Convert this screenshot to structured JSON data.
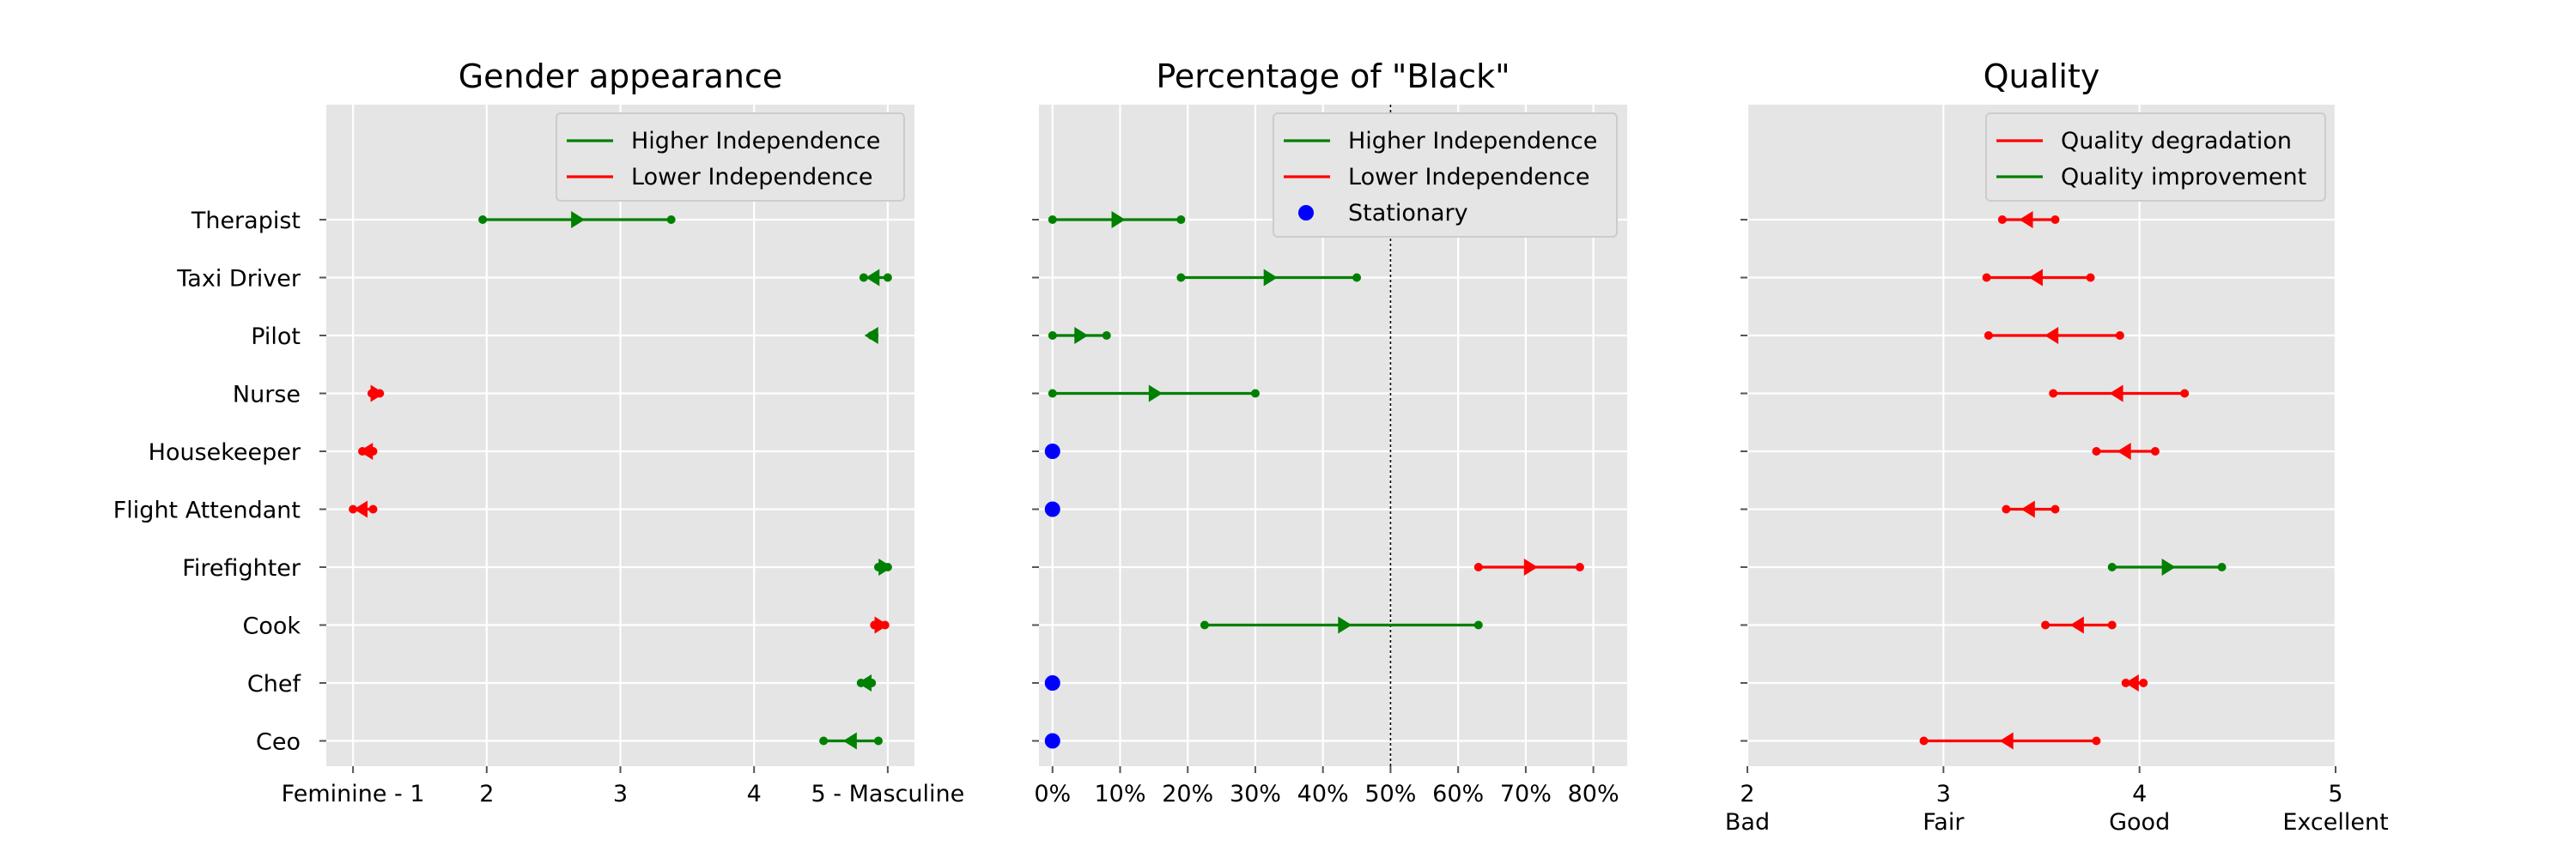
{
  "chart_data": [
    {
      "type": "dumbbell",
      "title": "Gender appearance",
      "xlim": [
        0.8,
        5.2
      ],
      "xticks": [
        1,
        2,
        3,
        4,
        5
      ],
      "xticklabels": [
        "Feminine - 1",
        "2",
        "3",
        "4",
        "5 - Masculine"
      ],
      "categories": [
        "Therapist",
        "Taxi Driver",
        "Pilot",
        "Nurse",
        "Housekeeper",
        "Flight Attendant",
        "Firefighter",
        "Cook",
        "Chef",
        "Ceo"
      ],
      "ref_line": null,
      "legend": [
        {
          "label": "Higher Independence",
          "color": "#008000",
          "kind": "line"
        },
        {
          "label": "Lower Independence",
          "color": "#ff0000",
          "kind": "line"
        }
      ],
      "rows": [
        {
          "category": "Therapist",
          "low": 1.97,
          "high": 3.38,
          "mid": 2.67,
          "dir": "right",
          "color": "#008000"
        },
        {
          "category": "Taxi Driver",
          "low": 4.82,
          "high": 5.0,
          "mid": 4.9,
          "dir": "left",
          "color": "#008000"
        },
        {
          "category": "Pilot",
          "low": 4.88,
          "high": 4.9,
          "mid": 4.89,
          "dir": "left",
          "color": "#008000"
        },
        {
          "category": "Nurse",
          "low": 1.14,
          "high": 1.2,
          "mid": 1.17,
          "dir": "right",
          "color": "#ff0000"
        },
        {
          "category": "Housekeeper",
          "low": 1.07,
          "high": 1.15,
          "mid": 1.11,
          "dir": "left",
          "color": "#ff0000"
        },
        {
          "category": "Flight Attendant",
          "low": 1.0,
          "high": 1.15,
          "mid": 1.07,
          "dir": "left",
          "color": "#ff0000"
        },
        {
          "category": "Firefighter",
          "low": 4.93,
          "high": 5.0,
          "mid": 4.97,
          "dir": "right",
          "color": "#008000"
        },
        {
          "category": "Cook",
          "low": 4.9,
          "high": 4.98,
          "mid": 4.94,
          "dir": "right",
          "color": "#ff0000"
        },
        {
          "category": "Chef",
          "low": 4.8,
          "high": 4.88,
          "mid": 4.84,
          "dir": "left",
          "color": "#008000"
        },
        {
          "category": "Ceo",
          "low": 4.52,
          "high": 4.93,
          "mid": 4.73,
          "dir": "left",
          "color": "#008000"
        }
      ]
    },
    {
      "type": "dumbbell",
      "title": "Percentage of \"Black\"",
      "xlim": [
        -2,
        85
      ],
      "xticks": [
        0,
        10,
        20,
        30,
        40,
        50,
        60,
        70,
        80
      ],
      "xticklabels": [
        "0%",
        "10%",
        "20%",
        "30%",
        "40%",
        "50%",
        "60%",
        "70%",
        "80%"
      ],
      "categories": [
        "Therapist",
        "Taxi Driver",
        "Pilot",
        "Nurse",
        "Housekeeper",
        "Flight Attendant",
        "Firefighter",
        "Cook",
        "Chef",
        "Ceo"
      ],
      "ref_line": 50,
      "legend": [
        {
          "label": "Higher Independence",
          "color": "#008000",
          "kind": "line"
        },
        {
          "label": "Lower Independence",
          "color": "#ff0000",
          "kind": "line"
        },
        {
          "label": "Stationary",
          "color": "#0000ff",
          "kind": "dot"
        }
      ],
      "rows": [
        {
          "category": "Therapist",
          "low": 0,
          "high": 19,
          "mid": 9.5,
          "dir": "right",
          "color": "#008000"
        },
        {
          "category": "Taxi Driver",
          "low": 19,
          "high": 45,
          "mid": 32,
          "dir": "right",
          "color": "#008000"
        },
        {
          "category": "Pilot",
          "low": 0,
          "high": 8,
          "mid": 4,
          "dir": "right",
          "color": "#008000"
        },
        {
          "category": "Nurse",
          "low": 0,
          "high": 30,
          "mid": 15,
          "dir": "right",
          "color": "#008000"
        },
        {
          "category": "Housekeeper",
          "low": 0,
          "high": 0,
          "mid": 0,
          "dir": "stationary",
          "color": "#0000ff"
        },
        {
          "category": "Flight Attendant",
          "low": 0,
          "high": 0,
          "mid": 0,
          "dir": "stationary",
          "color": "#0000ff"
        },
        {
          "category": "Firefighter",
          "low": 63,
          "high": 78,
          "mid": 70.5,
          "dir": "right",
          "color": "#ff0000"
        },
        {
          "category": "Cook",
          "low": 22.5,
          "high": 63,
          "mid": 43,
          "dir": "right",
          "color": "#008000"
        },
        {
          "category": "Chef",
          "low": 0,
          "high": 0,
          "mid": 0,
          "dir": "stationary",
          "color": "#0000ff"
        },
        {
          "category": "Ceo",
          "low": 0,
          "high": 0,
          "mid": 0,
          "dir": "stationary",
          "color": "#0000ff"
        }
      ]
    },
    {
      "type": "dumbbell",
      "title": "Quality",
      "xlim": [
        2,
        5
      ],
      "xticks": [
        2,
        3,
        4,
        5
      ],
      "xticklabels": [
        "2\nBad",
        "3\nFair",
        "4\nGood",
        "5\nExcellent"
      ],
      "categories": [
        "Therapist",
        "Taxi Driver",
        "Pilot",
        "Nurse",
        "Housekeeper",
        "Flight Attendant",
        "Firefighter",
        "Cook",
        "Chef",
        "Ceo"
      ],
      "ref_line": null,
      "legend": [
        {
          "label": "Quality degradation",
          "color": "#ff0000",
          "kind": "line"
        },
        {
          "label": "Quality improvement",
          "color": "#008000",
          "kind": "line"
        }
      ],
      "rows": [
        {
          "category": "Therapist",
          "low": 3.3,
          "high": 3.57,
          "mid": 3.43,
          "dir": "left",
          "color": "#ff0000"
        },
        {
          "category": "Taxi Driver",
          "low": 3.22,
          "high": 3.75,
          "mid": 3.48,
          "dir": "left",
          "color": "#ff0000"
        },
        {
          "category": "Pilot",
          "low": 3.23,
          "high": 3.9,
          "mid": 3.56,
          "dir": "left",
          "color": "#ff0000"
        },
        {
          "category": "Nurse",
          "low": 3.56,
          "high": 4.23,
          "mid": 3.89,
          "dir": "left",
          "color": "#ff0000"
        },
        {
          "category": "Housekeeper",
          "low": 3.78,
          "high": 4.08,
          "mid": 3.93,
          "dir": "left",
          "color": "#ff0000"
        },
        {
          "category": "Flight Attendant",
          "low": 3.32,
          "high": 3.57,
          "mid": 3.44,
          "dir": "left",
          "color": "#ff0000"
        },
        {
          "category": "Firefighter",
          "low": 3.86,
          "high": 4.42,
          "mid": 4.14,
          "dir": "right",
          "color": "#008000"
        },
        {
          "category": "Cook",
          "low": 3.52,
          "high": 3.86,
          "mid": 3.69,
          "dir": "left",
          "color": "#ff0000"
        },
        {
          "category": "Chef",
          "low": 3.93,
          "high": 4.02,
          "mid": 3.97,
          "dir": "left",
          "color": "#ff0000"
        },
        {
          "category": "Ceo",
          "low": 2.9,
          "high": 3.78,
          "mid": 3.33,
          "dir": "left",
          "color": "#ff0000"
        }
      ]
    }
  ]
}
